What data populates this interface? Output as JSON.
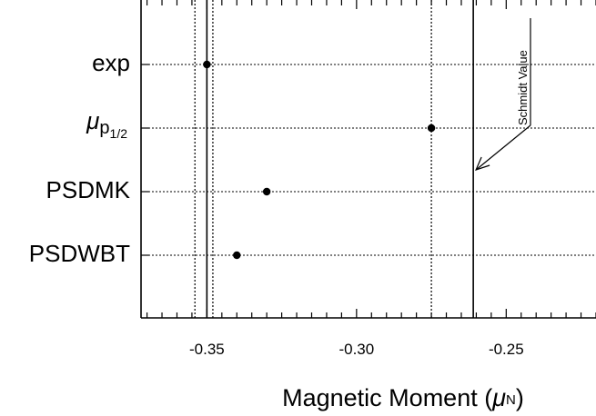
{
  "chart_data": {
    "type": "scatter",
    "xlabel": "Magnetic Moment (μN)",
    "xlim": [
      -0.372,
      -0.22
    ],
    "xticks": [
      "-0.35",
      "-0.30",
      "-0.25"
    ],
    "xtick_values": [
      -0.35,
      -0.3,
      -0.25
    ],
    "categories": [
      "exp",
      "μp1/2",
      "PSDMK",
      "PSDWBT"
    ],
    "points": [
      {
        "category": "exp",
        "x": -0.35
      },
      {
        "category": "μp1/2",
        "x": -0.275
      },
      {
        "category": "PSDMK",
        "x": -0.33
      },
      {
        "category": "PSDWBT",
        "x": -0.34
      }
    ],
    "vertical_lines": [
      {
        "x": -0.354,
        "style": "dotted"
      },
      {
        "x": -0.35,
        "style": "solid"
      },
      {
        "x": -0.348,
        "style": "dotted"
      },
      {
        "x": -0.275,
        "style": "dotted"
      },
      {
        "x": -0.261,
        "style": "solid"
      }
    ],
    "annotation": {
      "text": "Schmidt Value",
      "x": -0.261
    },
    "grid": "horizontal dotted"
  }
}
